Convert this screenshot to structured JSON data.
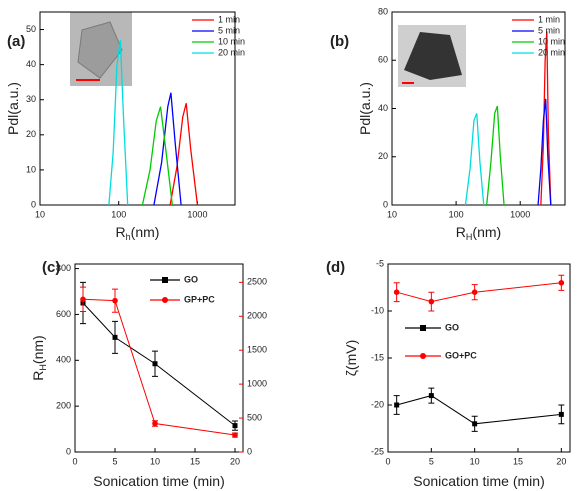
{
  "chart_data": [
    {
      "type": "line",
      "label": "(a)",
      "xscale": "log",
      "xlim": [
        10,
        3000
      ],
      "xticks": [
        10,
        100,
        1000
      ],
      "ylim": [
        0,
        55
      ],
      "yticks": [
        0,
        10,
        20,
        30,
        40,
        50
      ],
      "xlabel": "R",
      "xlabel_sub": "h",
      "xlabel_unit": "(nm)",
      "ylabel": "Pdl(a.u.)",
      "series": [
        {
          "name": "1 min",
          "color": "#ff0000",
          "x": [
            450,
            550,
            650,
            720,
            820,
            1000
          ],
          "values": [
            0,
            11,
            25,
            29,
            16,
            0
          ]
        },
        {
          "name": "5 min",
          "color": "#0000ff",
          "x": [
            280,
            350,
            420,
            460,
            520,
            620
          ],
          "values": [
            0,
            12,
            28,
            32,
            18,
            0
          ]
        },
        {
          "name": "10 min",
          "color": "#00cc00",
          "x": [
            200,
            250,
            300,
            340,
            400,
            480
          ],
          "values": [
            0,
            10,
            24,
            28,
            15,
            0
          ]
        },
        {
          "name": "20 min",
          "color": "#00dddd",
          "x": [
            75,
            85,
            95,
            105,
            115,
            130
          ],
          "values": [
            0,
            15,
            40,
            47,
            25,
            0
          ]
        }
      ]
    },
    {
      "type": "line",
      "label": "(b)",
      "xscale": "log",
      "xlim": [
        10,
        5000
      ],
      "xticks": [
        10,
        100,
        1000
      ],
      "ylim": [
        0,
        80
      ],
      "yticks": [
        0,
        20,
        40,
        60,
        80
      ],
      "xlabel": "R",
      "xlabel_sub": "H",
      "xlabel_unit": "(nm)",
      "ylabel": "Pdl(a.u.)",
      "series": [
        {
          "name": "1 min",
          "color": "#ff0000",
          "x": [
            2100,
            2300,
            2450,
            2600,
            2750,
            3000
          ],
          "values": [
            0,
            25,
            60,
            72,
            30,
            0
          ]
        },
        {
          "name": "5 min",
          "color": "#0000ff",
          "x": [
            1900,
            2100,
            2300,
            2500,
            2700,
            3000
          ],
          "values": [
            0,
            15,
            35,
            44,
            20,
            0
          ]
        },
        {
          "name": "10 min",
          "color": "#00cc00",
          "x": [
            300,
            350,
            400,
            440,
            490,
            560
          ],
          "values": [
            0,
            18,
            38,
            41,
            20,
            0
          ]
        },
        {
          "name": "20 min",
          "color": "#00dddd",
          "x": [
            140,
            165,
            190,
            210,
            235,
            270
          ],
          "values": [
            0,
            15,
            35,
            38,
            18,
            0
          ]
        }
      ]
    },
    {
      "type": "line",
      "label": "(c)",
      "xlim": [
        0,
        21
      ],
      "xticks": [
        0,
        5,
        10,
        15,
        20
      ],
      "ylim": [
        0,
        820
      ],
      "yticks": [
        0,
        200,
        400,
        600,
        800
      ],
      "y2lim": [
        0,
        2770
      ],
      "y2ticks": [
        0,
        500,
        1000,
        1500,
        2000,
        2500
      ],
      "y2color": "#ff0000",
      "xlabel": "Sonication time (min)",
      "ylabel": "R",
      "ylabel_sub": "H",
      "ylabel_unit": "(nm)",
      "series": [
        {
          "name": "GO",
          "color": "#000000",
          "marker": "square",
          "x": [
            1,
            5,
            10,
            20
          ],
          "values": [
            650,
            500,
            385,
            115
          ],
          "errors": [
            90,
            70,
            55,
            20
          ]
        },
        {
          "name": "GP+PC",
          "color": "#ff0000",
          "marker": "circle",
          "axis": "y2",
          "x": [
            1,
            5,
            10,
            20
          ],
          "values": [
            2250,
            2230,
            420,
            250
          ],
          "errors": [
            180,
            170,
            40,
            30
          ]
        }
      ]
    },
    {
      "type": "line",
      "label": "(d)",
      "xlim": [
        0,
        21
      ],
      "xticks": [
        0,
        5,
        10,
        15,
        20
      ],
      "ylim": [
        -25,
        -5
      ],
      "yticks": [
        -25,
        -20,
        -15,
        -10,
        -5
      ],
      "xlabel": "Sonication time (min)",
      "ylabel": "ζ(mV)",
      "series": [
        {
          "name": "GO",
          "color": "#000000",
          "marker": "square",
          "x": [
            1,
            5,
            10,
            20
          ],
          "values": [
            -20,
            -19,
            -22,
            -21
          ],
          "errors": [
            1,
            0.8,
            0.8,
            1
          ]
        },
        {
          "name": "GO+PC",
          "color": "#ff0000",
          "marker": "circle",
          "x": [
            1,
            5,
            10,
            20
          ],
          "values": [
            -8,
            -9,
            -8,
            -7
          ],
          "errors": [
            1,
            1,
            0.8,
            0.8
          ]
        }
      ]
    }
  ]
}
